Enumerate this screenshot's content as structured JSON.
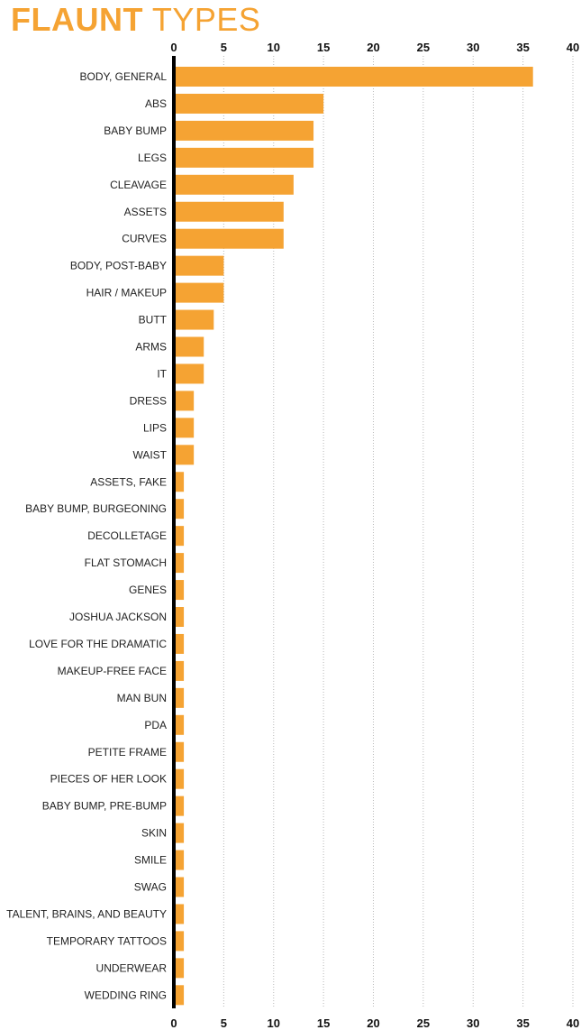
{
  "chart_data": {
    "type": "bar",
    "orientation": "horizontal",
    "title_part1": "FLAUNT",
    "title_part2": "TYPES",
    "xlim": [
      0,
      40
    ],
    "xticks": [
      0,
      5,
      10,
      15,
      20,
      25,
      30,
      35,
      40
    ],
    "axis_ticks_top_and_bottom": true,
    "grid": "dotted vertical",
    "categories": [
      "BODY, GENERAL",
      "ABS",
      "BABY BUMP",
      "LEGS",
      "CLEAVAGE",
      "ASSETS",
      "CURVES",
      "BODY, POST-BABY",
      "HAIR / MAKEUP",
      "BUTT",
      "ARMS",
      "IT",
      "DRESS",
      "LIPS",
      "WAIST",
      "ASSETS, FAKE",
      "BABY BUMP, BURGEONING",
      "DECOLLETAGE",
      "FLAT STOMACH",
      "GENES",
      "JOSHUA JACKSON",
      "LOVE FOR THE DRAMATIC",
      "MAKEUP-FREE FACE",
      "MAN BUN",
      "PDA",
      "PETITE FRAME",
      "PIECES OF HER LOOK",
      "BABY BUMP, PRE-BUMP",
      "SKIN",
      "SMILE",
      "SWAG",
      "TALENT, BRAINS, AND BEAUTY",
      "TEMPORARY TATTOOS",
      "UNDERWEAR",
      "WEDDING RING"
    ],
    "values": [
      36,
      15,
      14,
      14,
      12,
      11,
      11,
      5,
      5,
      4,
      3,
      3,
      2,
      2,
      2,
      1,
      1,
      1,
      1,
      1,
      1,
      1,
      1,
      1,
      1,
      1,
      1,
      1,
      1,
      1,
      1,
      1,
      1,
      1,
      1
    ]
  },
  "colors": {
    "accent": "#f5a333",
    "axis": "#000000",
    "grid": "#b8b8b8",
    "text": "#222222"
  }
}
